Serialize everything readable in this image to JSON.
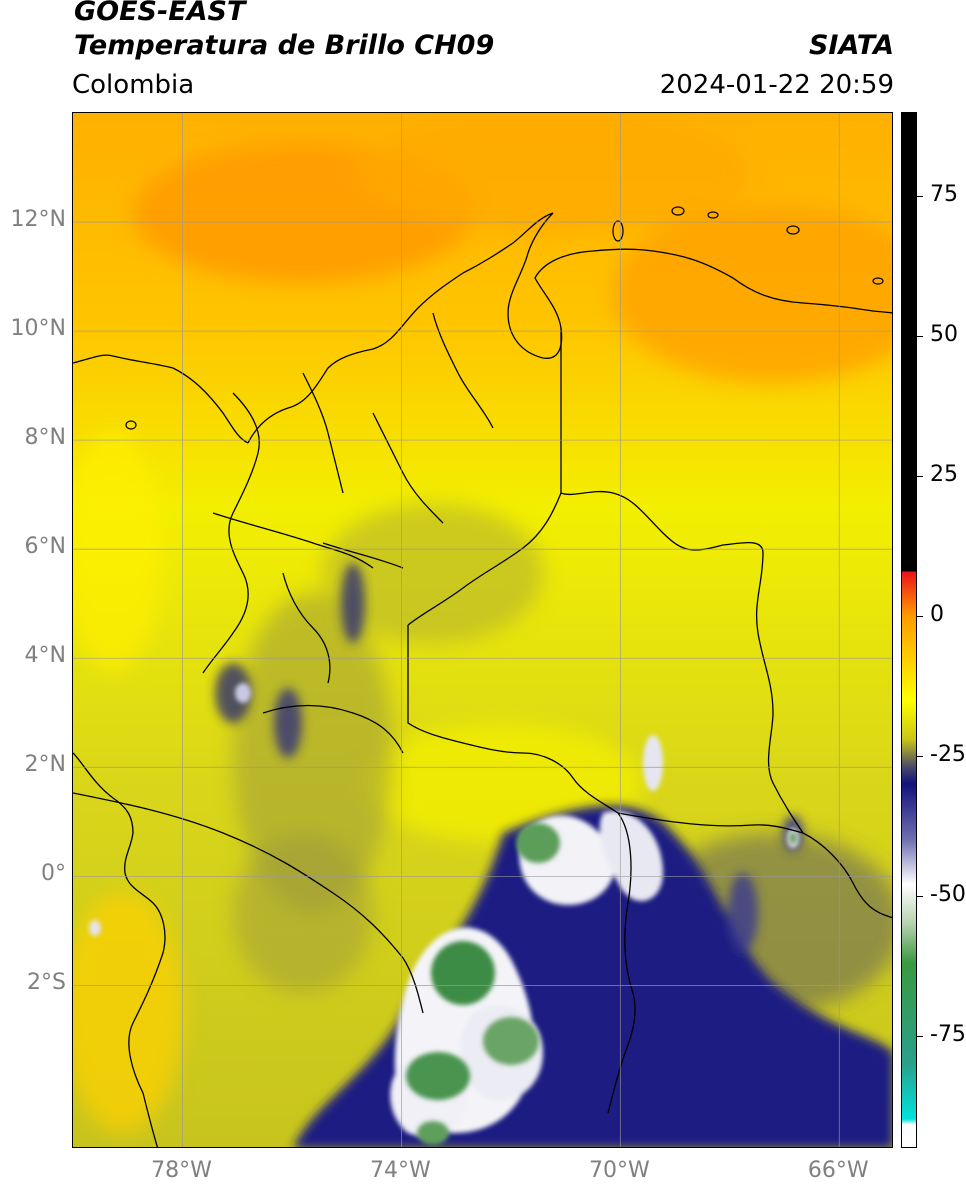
{
  "title": {
    "line1": "GOES-EAST",
    "line2": "Temperatura de Brillo CH09",
    "source": "SIATA",
    "region": "Colombia",
    "datetime": "2024-01-22 20:59"
  },
  "map": {
    "lon_range": [
      -80,
      -65
    ],
    "lat_range": [
      -5,
      14
    ],
    "lat_ticks": [
      {
        "lat": 12,
        "label": "12°N"
      },
      {
        "lat": 10,
        "label": "10°N"
      },
      {
        "lat": 8,
        "label": "8°N"
      },
      {
        "lat": 6,
        "label": "6°N"
      },
      {
        "lat": 4,
        "label": "4°N"
      },
      {
        "lat": 2,
        "label": "2°N"
      },
      {
        "lat": 0,
        "label": "0°"
      },
      {
        "lat": -2,
        "label": "2°S"
      }
    ],
    "lon_ticks": [
      {
        "lon": -78,
        "label": "78°W"
      },
      {
        "lon": -74,
        "label": "74°W"
      },
      {
        "lon": -70,
        "label": "70°W"
      },
      {
        "lon": -66,
        "label": "66°W"
      }
    ],
    "grid": true
  },
  "colorbar": {
    "range": [
      -95,
      90
    ],
    "tick_values": [
      75,
      50,
      25,
      0,
      -25,
      -50,
      -75
    ],
    "tick_labels": [
      "75",
      "50",
      "25",
      "0",
      "-25",
      "-50",
      "-75"
    ],
    "colors": {
      "hot": "#000000",
      "red": "#e8121a",
      "orange": "#ff9b00",
      "yellow": "#ffff00",
      "olive": "#c9c717",
      "navy": "#12127e",
      "white": "#ffffff",
      "green": "#3a9a3f",
      "cyan": "#00e2de"
    }
  }
}
